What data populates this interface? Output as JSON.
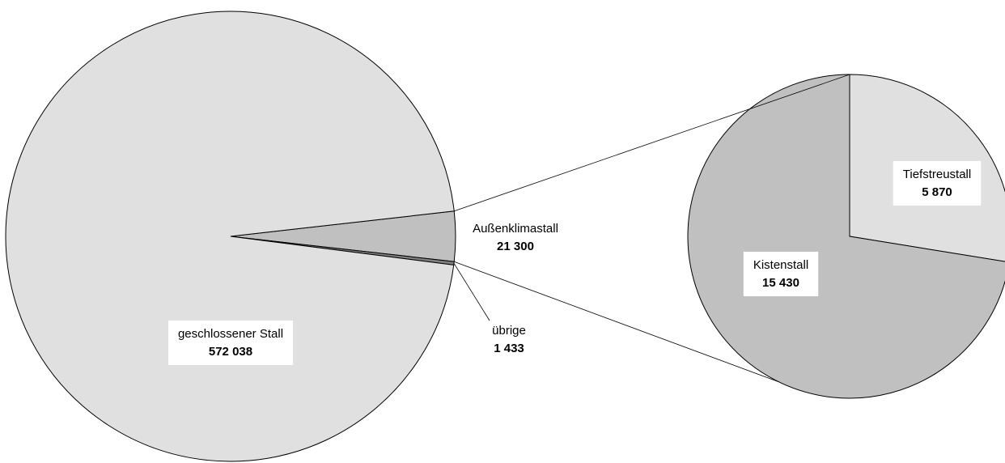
{
  "chart_data": [
    {
      "type": "pie",
      "categories": [
        "Außenklimastall",
        "übrige",
        "geschlossener Stall"
      ],
      "values": [
        21300,
        1433,
        572038
      ],
      "value_labels": [
        "21 300",
        "1 433",
        "572 038"
      ],
      "colors": [
        "#c0c0c0",
        "#808080",
        "#e0e0e0"
      ]
    },
    {
      "type": "pie",
      "categories": [
        "Tiefstreustall",
        "Kistenstall"
      ],
      "values": [
        5870,
        15430
      ],
      "value_labels": [
        "5 870",
        "15 430"
      ],
      "colors": [
        "#e0e0e0",
        "#c0c0c0"
      ]
    }
  ]
}
